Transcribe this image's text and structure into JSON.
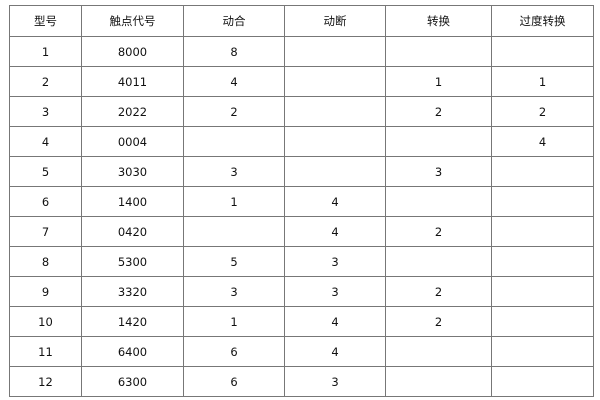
{
  "table": {
    "headers": [
      "型号",
      "触点代号",
      "动合",
      "动断",
      "转换",
      "过度转换"
    ],
    "rows": [
      [
        "1",
        "8000",
        "8",
        "",
        "",
        ""
      ],
      [
        "2",
        "4011",
        "4",
        "",
        "1",
        "1"
      ],
      [
        "3",
        "2022",
        "2",
        "",
        "2",
        "2"
      ],
      [
        "4",
        "0004",
        "",
        "",
        "",
        "4"
      ],
      [
        "5",
        "3030",
        "3",
        "",
        "3",
        ""
      ],
      [
        "6",
        "1400",
        "1",
        "4",
        "",
        ""
      ],
      [
        "7",
        "0420",
        "",
        "4",
        "2",
        ""
      ],
      [
        "8",
        "5300",
        "5",
        "3",
        "",
        ""
      ],
      [
        "9",
        "3320",
        "3",
        "3",
        "2",
        ""
      ],
      [
        "10",
        "1420",
        "1",
        "4",
        "2",
        ""
      ],
      [
        "11",
        "6400",
        "6",
        "4",
        "",
        ""
      ],
      [
        "12",
        "6300",
        "6",
        "3",
        "",
        ""
      ]
    ]
  }
}
